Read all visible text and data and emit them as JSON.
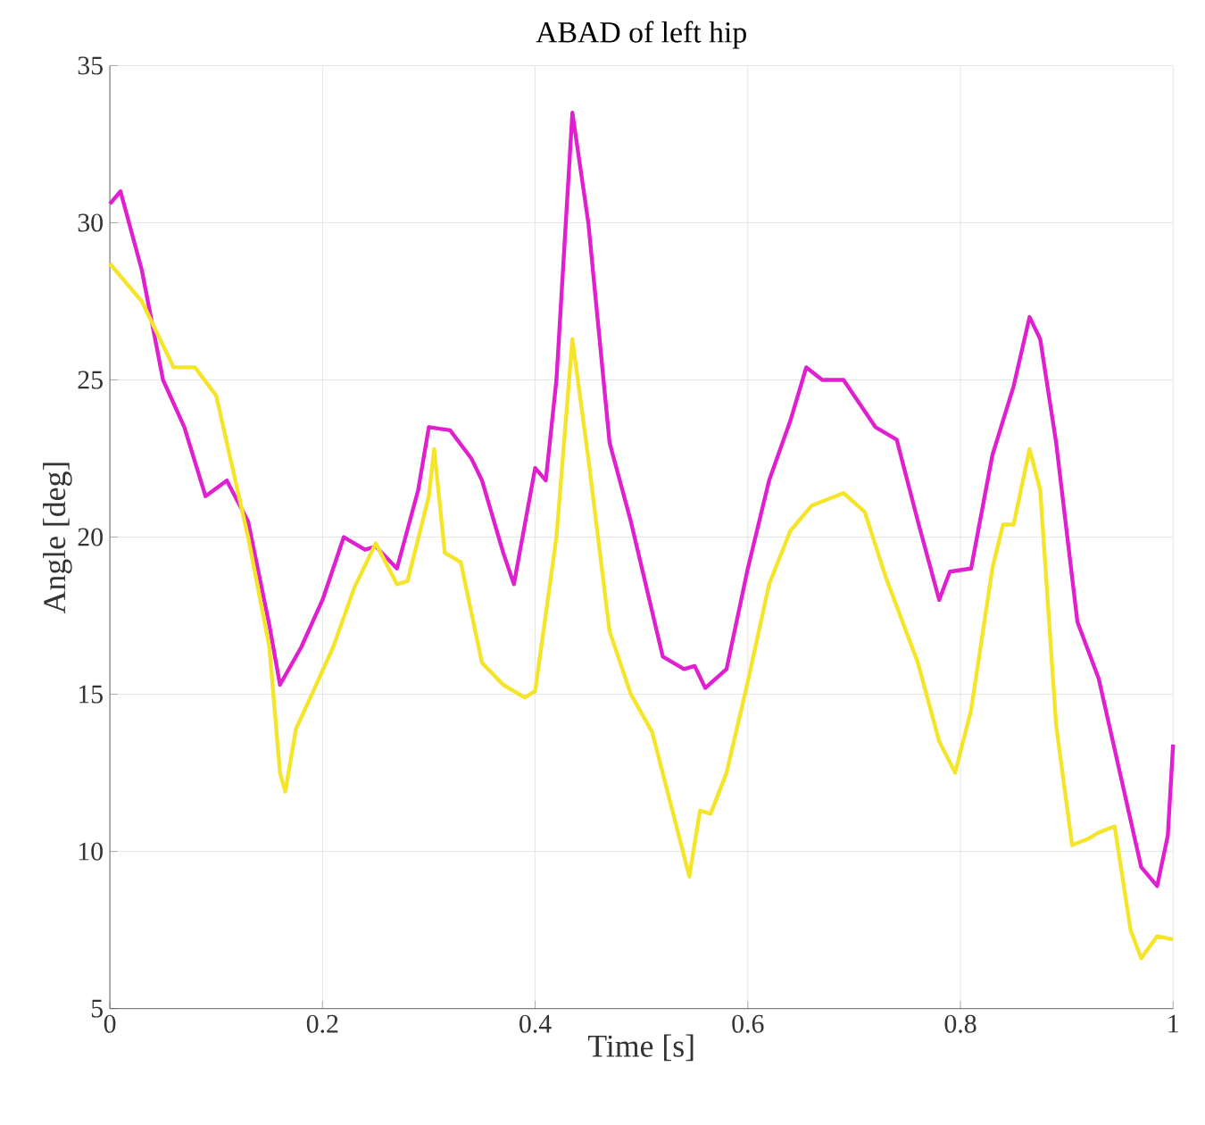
{
  "chart_data": {
    "type": "line",
    "title": "ABAD of left hip",
    "xlabel": "Time [s]",
    "ylabel": "Angle [deg]",
    "xlim": [
      0,
      1
    ],
    "ylim": [
      5,
      35
    ],
    "xticks": [
      0,
      0.2,
      0.4,
      0.6,
      0.8,
      1
    ],
    "yticks": [
      5,
      10,
      15,
      20,
      25,
      30,
      35
    ],
    "grid": true,
    "marker": "none",
    "line_style": "solid",
    "series": [
      {
        "color": "#e020d0",
        "x": [
          0,
          0.01,
          0.03,
          0.05,
          0.07,
          0.09,
          0.11,
          0.13,
          0.15,
          0.16,
          0.18,
          0.2,
          0.22,
          0.24,
          0.25,
          0.27,
          0.29,
          0.3,
          0.32,
          0.34,
          0.35,
          0.37,
          0.38,
          0.4,
          0.41,
          0.42,
          0.435,
          0.45,
          0.47,
          0.49,
          0.52,
          0.54,
          0.55,
          0.56,
          0.58,
          0.6,
          0.62,
          0.64,
          0.655,
          0.67,
          0.69,
          0.72,
          0.74,
          0.76,
          0.78,
          0.79,
          0.81,
          0.83,
          0.85,
          0.865,
          0.875,
          0.89,
          0.91,
          0.93,
          0.95,
          0.97,
          0.985,
          0.995,
          1.0
        ],
        "values": [
          30.6,
          31,
          28.5,
          25,
          23.5,
          21.3,
          21.8,
          20.5,
          17.2,
          15.3,
          16.5,
          18,
          20,
          19.6,
          19.7,
          19.0,
          21.5,
          23.5,
          23.4,
          22.5,
          21.8,
          19.5,
          18.5,
          22.2,
          21.8,
          25,
          33.5,
          30,
          23,
          20.5,
          16.2,
          15.8,
          15.9,
          15.2,
          15.8,
          19,
          21.8,
          23.7,
          25.4,
          25,
          25,
          23.5,
          23.1,
          20.5,
          18,
          18.9,
          19,
          22.6,
          24.8,
          27,
          26.3,
          23,
          17.3,
          15.5,
          12.5,
          9.5,
          8.9,
          10.5,
          13.4
        ]
      },
      {
        "color": "#f5e52a",
        "x": [
          0,
          0.03,
          0.06,
          0.08,
          0.1,
          0.13,
          0.15,
          0.16,
          0.165,
          0.175,
          0.19,
          0.21,
          0.23,
          0.25,
          0.27,
          0.28,
          0.3,
          0.305,
          0.315,
          0.33,
          0.35,
          0.37,
          0.39,
          0.4,
          0.42,
          0.435,
          0.45,
          0.47,
          0.49,
          0.51,
          0.545,
          0.555,
          0.565,
          0.58,
          0.6,
          0.62,
          0.64,
          0.66,
          0.69,
          0.71,
          0.73,
          0.76,
          0.78,
          0.795,
          0.81,
          0.83,
          0.84,
          0.85,
          0.865,
          0.875,
          0.89,
          0.905,
          0.92,
          0.93,
          0.945,
          0.96,
          0.97,
          0.985,
          1.0
        ],
        "values": [
          28.7,
          27.5,
          25.4,
          25.4,
          24.5,
          20,
          16.5,
          12.5,
          11.9,
          13.9,
          15,
          16.5,
          18.4,
          19.8,
          18.5,
          18.6,
          21.3,
          22.8,
          19.5,
          19.2,
          16,
          15.3,
          14.9,
          15.1,
          20,
          26.3,
          22.5,
          17,
          15,
          13.8,
          9.2,
          11.3,
          11.2,
          12.5,
          15.4,
          18.5,
          20.2,
          21,
          21.4,
          20.8,
          18.7,
          16,
          13.5,
          12.5,
          14.5,
          19,
          20.4,
          20.4,
          22.8,
          21.5,
          14,
          10.2,
          10.4,
          10.6,
          10.8,
          7.5,
          6.6,
          7.3,
          7.2
        ]
      }
    ]
  }
}
